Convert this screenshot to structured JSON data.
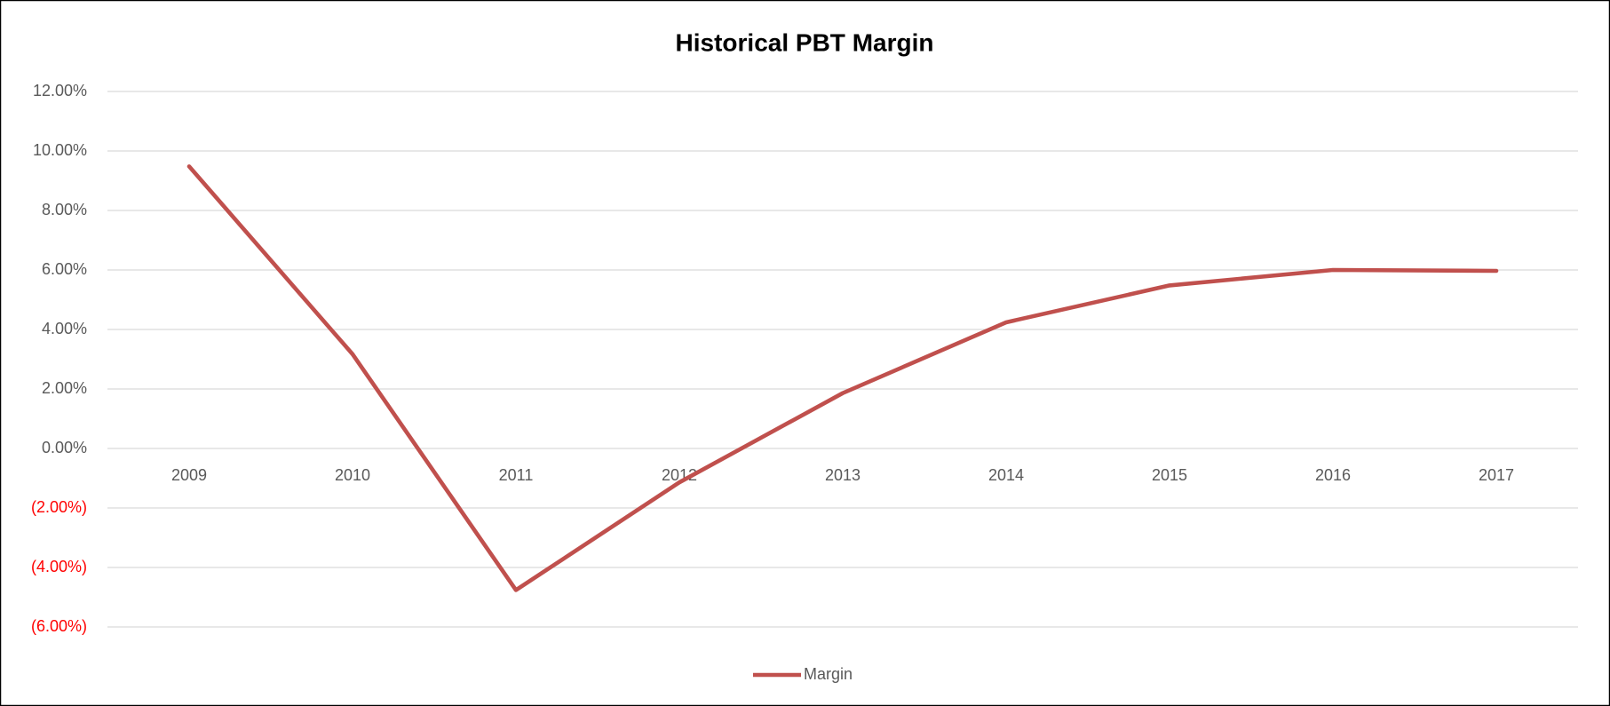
{
  "chart_data": {
    "type": "line",
    "title": "Historical PBT Margin",
    "categories": [
      "2009",
      "2010",
      "2011",
      "2012",
      "2013",
      "2014",
      "2015",
      "2016",
      "2017"
    ],
    "series": [
      {
        "name": "Margin",
        "color": "#c0504d",
        "values": [
          9.48,
          3.17,
          -4.76,
          -1.14,
          1.86,
          4.24,
          5.48,
          6.0,
          5.97
        ]
      }
    ],
    "ylim": [
      -6,
      12
    ],
    "yticks": [
      {
        "value": -6,
        "label": "(6.00%)"
      },
      {
        "value": -4,
        "label": "(4.00%)"
      },
      {
        "value": -2,
        "label": "(2.00%)"
      },
      {
        "value": 0,
        "label": "0.00%"
      },
      {
        "value": 2,
        "label": "2.00%"
      },
      {
        "value": 4,
        "label": "4.00%"
      },
      {
        "value": 6,
        "label": "6.00%"
      },
      {
        "value": 8,
        "label": "8.00%"
      },
      {
        "value": 10,
        "label": "10.00%"
      },
      {
        "value": 12,
        "label": "12.00%"
      }
    ],
    "grid": true,
    "legend": "bottom",
    "negative_tick_color": "#ff0000"
  }
}
